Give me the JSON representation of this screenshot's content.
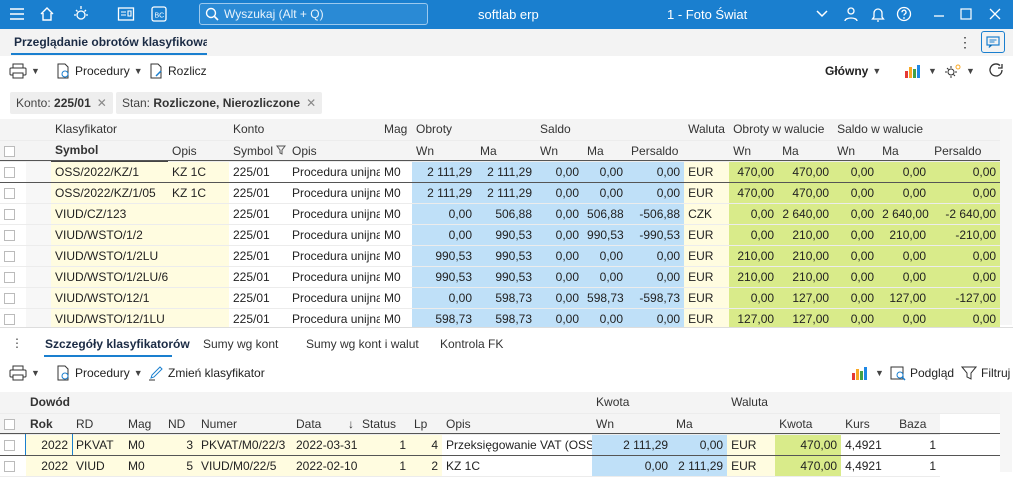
{
  "topbar": {
    "search_placeholder": "Wyszukaj (Alt + Q)",
    "app_name": "softlab erp",
    "company": "1 - Foto Świat",
    "colors": {
      "bar": "#1a7fcf"
    }
  },
  "tab": {
    "title": "Przeglądanie obrotów klasyfikowanych"
  },
  "toolbar1": {
    "procedures": "Procedury",
    "settle": "Rozlicz",
    "view": "Główny"
  },
  "filters": [
    {
      "label": "Konto:",
      "value": "225/01"
    },
    {
      "label": "Stan:",
      "value": "Rozliczone, Nierozliczone"
    }
  ],
  "grid1": {
    "group_headers": [
      "Klasyfikator",
      "Konto",
      "Mag",
      "Obroty",
      "Saldo",
      "Waluta",
      "Obroty w walucie",
      "Saldo w walucie"
    ],
    "columns": [
      "Symbol",
      "Opis",
      "Symbol",
      "Opis",
      "",
      "Wn",
      "Ma",
      "Wn",
      "Ma",
      "Persaldo",
      "",
      "Wn",
      "Ma",
      "Wn",
      "Ma",
      "Persaldo"
    ],
    "rows": [
      [
        "OSS/2022/KZ/1",
        "KZ 1C",
        "225/01",
        "Procedura unijna",
        "M0",
        "2 111,29",
        "2 111,29",
        "0,00",
        "0,00",
        "0,00",
        "EUR",
        "470,00",
        "470,00",
        "0,00",
        "0,00",
        "0,00"
      ],
      [
        "OSS/2022/KZ/1/05",
        "KZ 1C",
        "225/01",
        "Procedura unijna",
        "M0",
        "2 111,29",
        "2 111,29",
        "0,00",
        "0,00",
        "0,00",
        "EUR",
        "470,00",
        "470,00",
        "0,00",
        "0,00",
        "0,00"
      ],
      [
        "VIUD/CZ/123",
        "",
        "225/01",
        "Procedura unijna",
        "M0",
        "0,00",
        "506,88",
        "0,00",
        "506,88",
        "-506,88",
        "CZK",
        "0,00",
        "2 640,00",
        "0,00",
        "2 640,00",
        "-2 640,00"
      ],
      [
        "VIUD/WSTO/1/2",
        "",
        "225/01",
        "Procedura unijna",
        "M0",
        "0,00",
        "990,53",
        "0,00",
        "990,53",
        "-990,53",
        "EUR",
        "0,00",
        "210,00",
        "0,00",
        "210,00",
        "-210,00"
      ],
      [
        "VIUD/WSTO/1/2LU",
        "",
        "225/01",
        "Procedura unijna",
        "M0",
        "990,53",
        "990,53",
        "0,00",
        "0,00",
        "0,00",
        "EUR",
        "210,00",
        "210,00",
        "0,00",
        "0,00",
        "0,00"
      ],
      [
        "VIUD/WSTO/1/2LU/6",
        "",
        "225/01",
        "Procedura unijna",
        "M0",
        "990,53",
        "990,53",
        "0,00",
        "0,00",
        "0,00",
        "EUR",
        "210,00",
        "210,00",
        "0,00",
        "0,00",
        "0,00"
      ],
      [
        "VIUD/WSTO/12/1",
        "",
        "225/01",
        "Procedura unijna",
        "M0",
        "0,00",
        "598,73",
        "0,00",
        "598,73",
        "-598,73",
        "EUR",
        "0,00",
        "127,00",
        "0,00",
        "127,00",
        "-127,00"
      ],
      [
        "VIUD/WSTO/12/1LU",
        "",
        "225/01",
        "Procedura unijna",
        "M0",
        "598,73",
        "598,73",
        "0,00",
        "0,00",
        "0,00",
        "EUR",
        "127,00",
        "127,00",
        "0,00",
        "0,00",
        "0,00"
      ]
    ]
  },
  "subtabs": [
    "Szczegóły klasyfikatorów",
    "Sumy wg kont",
    "Sumy wg kont i walut",
    "Kontrola FK"
  ],
  "toolbar2": {
    "procedures": "Procedury",
    "change": "Zmień klasyfikator",
    "preview": "Podgląd",
    "filter": "Filtruj"
  },
  "grid2": {
    "group_headers": [
      "Dowód",
      "Kwota",
      "Waluta"
    ],
    "columns": [
      "Rok",
      "RD",
      "Mag",
      "ND",
      "Numer",
      "Data",
      "Status",
      "Lp",
      "Opis",
      "Wn",
      "Ma",
      "",
      "Kwota",
      "Kurs",
      "Baza"
    ],
    "rows": [
      [
        "2022",
        "PKVAT",
        "M0",
        "3",
        "PKVAT/M0/22/3",
        "2022-03-31",
        "1",
        "4",
        "Przeksięgowanie VAT (OSS)",
        "2 111,29",
        "0,00",
        "EUR",
        "470,00",
        "4,4921",
        "1"
      ],
      [
        "2022",
        "VIUD",
        "M0",
        "5",
        "VIUD/M0/22/5",
        "2022-02-10",
        "1",
        "2",
        "KZ 1C",
        "0,00",
        "2 111,29",
        "EUR",
        "470,00",
        "4,4921",
        "1"
      ]
    ]
  }
}
